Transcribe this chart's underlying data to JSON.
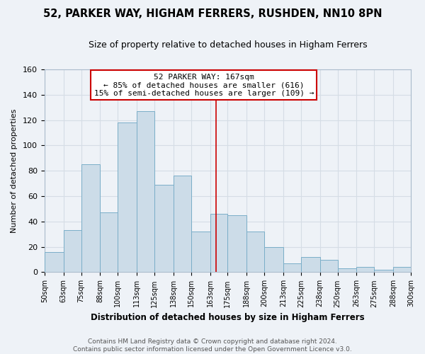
{
  "title": "52, PARKER WAY, HIGHAM FERRERS, RUSHDEN, NN10 8PN",
  "subtitle": "Size of property relative to detached houses in Higham Ferrers",
  "xlabel": "Distribution of detached houses by size in Higham Ferrers",
  "ylabel": "Number of detached properties",
  "footer_line1": "Contains HM Land Registry data © Crown copyright and database right 2024.",
  "footer_line2": "Contains public sector information licensed under the Open Government Licence v3.0.",
  "bar_edges": [
    50,
    63,
    75,
    88,
    100,
    113,
    125,
    138,
    150,
    163,
    175,
    188,
    200,
    213,
    225,
    238,
    250,
    263,
    275,
    288,
    300
  ],
  "bar_heights": [
    16,
    33,
    85,
    47,
    118,
    127,
    69,
    76,
    32,
    46,
    45,
    32,
    20,
    7,
    12,
    10,
    3,
    4,
    2,
    4
  ],
  "bar_color": "#ccdce8",
  "bar_edgecolor": "#7aaec8",
  "reference_line_x": 167,
  "reference_line_color": "#cc0000",
  "annotation_line1": "52 PARKER WAY: 167sqm",
  "annotation_line2": "← 85% of detached houses are smaller (616)",
  "annotation_line3": "15% of semi-detached houses are larger (109) →",
  "ylim": [
    0,
    160
  ],
  "xlim": [
    50,
    300
  ],
  "yticks": [
    0,
    20,
    40,
    60,
    80,
    100,
    120,
    140,
    160
  ],
  "grid_color": "#d5dde5",
  "background_color": "#eef2f7",
  "tick_labels": [
    "50sqm",
    "63sqm",
    "75sqm",
    "88sqm",
    "100sqm",
    "113sqm",
    "125sqm",
    "138sqm",
    "150sqm",
    "163sqm",
    "175sqm",
    "188sqm",
    "200sqm",
    "213sqm",
    "225sqm",
    "238sqm",
    "250sqm",
    "263sqm",
    "275sqm",
    "288sqm",
    "300sqm"
  ]
}
